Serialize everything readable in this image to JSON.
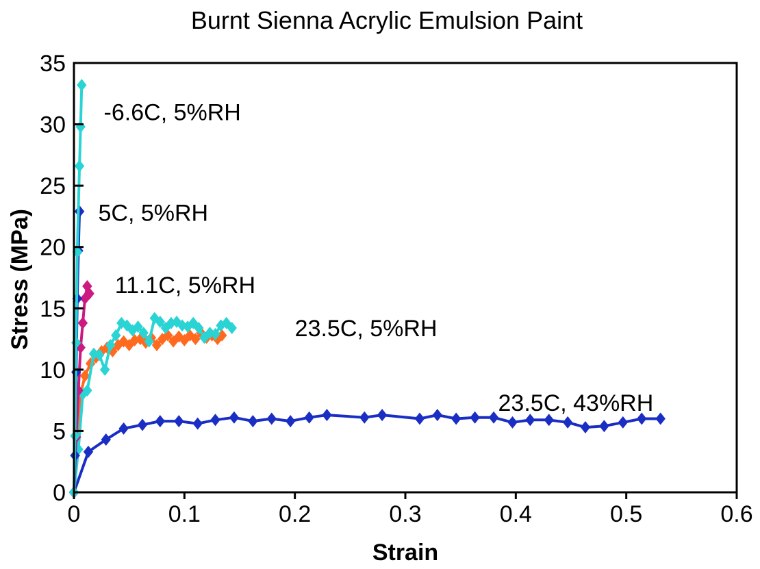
{
  "chart_data": {
    "type": "line",
    "title": "Burnt Sienna Acrylic Emulsion Paint",
    "xlabel": "Strain",
    "ylabel": "Stress (MPa)",
    "xlim": [
      0,
      0.6
    ],
    "ylim": [
      0,
      35
    ],
    "xticks": [
      "0",
      "0.1",
      "0.2",
      "0.3",
      "0.4",
      "0.5",
      "0.6"
    ],
    "yticks": [
      "0",
      "5",
      "10",
      "15",
      "20",
      "25",
      "30",
      "35"
    ],
    "grid": false,
    "series": [
      {
        "name": "23.5C, 43%RH",
        "color": "#1a2ec4",
        "x": [
          0,
          0.013,
          0.029,
          0.045,
          0.062,
          0.078,
          0.095,
          0.112,
          0.128,
          0.145,
          0.162,
          0.179,
          0.196,
          0.213,
          0.229,
          0.263,
          0.279,
          0.313,
          0.329,
          0.346,
          0.363,
          0.38,
          0.397,
          0.413,
          0.43,
          0.447,
          0.463,
          0.48,
          0.497,
          0.514,
          0.531
        ],
        "values": [
          0,
          3.3,
          4.3,
          5.2,
          5.5,
          5.8,
          5.8,
          5.6,
          5.9,
          6.1,
          5.8,
          6.0,
          5.8,
          6.1,
          6.3,
          6.1,
          6.3,
          6.0,
          6.3,
          6.0,
          6.1,
          6.1,
          5.7,
          5.9,
          5.9,
          5.7,
          5.3,
          5.4,
          5.7,
          6.0,
          6.0
        ]
      },
      {
        "name": "23.5C, 5%RH",
        "color": "#ff6a1f",
        "x": [
          0,
          0.003,
          0.006,
          0.01,
          0.015,
          0.02,
          0.025,
          0.03,
          0.035,
          0.04,
          0.045,
          0.05,
          0.055,
          0.06,
          0.065,
          0.07,
          0.075,
          0.08,
          0.085,
          0.09,
          0.095,
          0.1,
          0.105,
          0.11,
          0.115,
          0.12,
          0.125,
          0.13,
          0.134
        ],
        "values": [
          0,
          5.0,
          8.0,
          9.5,
          10.5,
          11.0,
          11.5,
          11.8,
          11.5,
          12.0,
          12.3,
          12.0,
          12.4,
          12.5,
          12.2,
          12.6,
          12.0,
          12.5,
          12.8,
          12.3,
          12.7,
          12.4,
          12.8,
          12.5,
          13.0,
          12.6,
          12.8,
          12.5,
          12.8
        ]
      },
      {
        "name": "23.5C, 5%RH",
        "color": "#2ad4d4",
        "x": [
          0,
          0.004,
          0.008,
          0.012,
          0.018,
          0.023,
          0.028,
          0.033,
          0.038,
          0.043,
          0.048,
          0.053,
          0.058,
          0.063,
          0.068,
          0.073,
          0.078,
          0.083,
          0.088,
          0.093,
          0.098,
          0.103,
          0.108,
          0.113,
          0.118,
          0.123,
          0.128,
          0.133,
          0.138,
          0.143
        ],
        "values": [
          0,
          3.5,
          8.0,
          8.3,
          11.3,
          11.2,
          10.0,
          12.0,
          12.8,
          13.8,
          13.6,
          13.2,
          13.5,
          13.0,
          12.3,
          14.2,
          13.9,
          13.4,
          13.8,
          13.9,
          13.6,
          13.5,
          13.8,
          13.4,
          12.6,
          13.0,
          12.9,
          13.6,
          13.8,
          13.4
        ]
      },
      {
        "name": "11.1C, 5%RH",
        "color": "#cc1a80",
        "x": [
          0,
          0.002,
          0.004,
          0.006,
          0.008,
          0.01,
          0.012,
          0.014
        ],
        "values": [
          0,
          4.5,
          8.3,
          11.8,
          13.8,
          15.8,
          16.8,
          16.2
        ]
      },
      {
        "name": "5C, 5%RH",
        "color": "#1a2ec4",
        "x": [
          0,
          0.001,
          0.002,
          0.003,
          0.004,
          0.005
        ],
        "values": [
          0,
          3.0,
          9.8,
          15.8,
          19.7,
          22.9
        ]
      },
      {
        "name": "-6.6C, 5%RH",
        "color": "#2ad4d4",
        "x": [
          0,
          0.001,
          0.002,
          0.003,
          0.005,
          0.006,
          0.007
        ],
        "values": [
          0,
          4.6,
          12.2,
          19.6,
          26.6,
          29.8,
          33.2
        ]
      }
    ],
    "annotations": [
      {
        "text": "-6.6C, 5%RH",
        "x": 0.027,
        "y": 31.0
      },
      {
        "text": "5C, 5%RH",
        "x": 0.022,
        "y": 22.8
      },
      {
        "text": "11.1C, 5%RH",
        "x": 0.037,
        "y": 16.9
      },
      {
        "text": "23.5C, 5%RH",
        "x": 0.2,
        "y": 13.4
      },
      {
        "text": "23.5C, 43%RH",
        "x": 0.384,
        "y": 7.3
      }
    ]
  }
}
